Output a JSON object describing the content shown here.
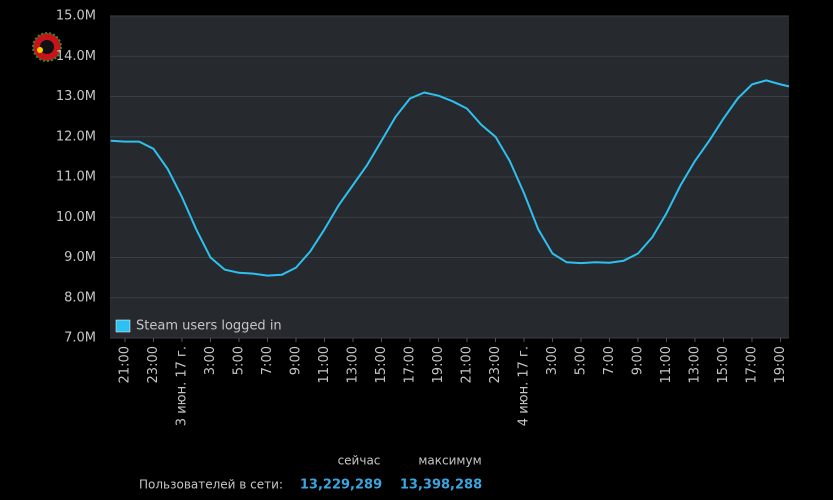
{
  "chart_data": {
    "type": "line",
    "legend": "top-left-inside",
    "grid": true,
    "x": [
      -4,
      -3,
      -2,
      -1,
      0,
      1,
      2,
      3,
      4,
      5,
      6,
      7,
      8,
      9,
      10,
      11,
      12,
      13,
      14,
      15,
      16,
      17,
      18,
      19,
      20,
      21,
      22,
      23,
      24,
      25,
      26,
      27,
      28,
      29,
      30,
      31,
      32,
      33,
      34,
      35,
      36,
      37,
      38,
      39,
      40,
      41,
      42,
      43,
      43.6
    ],
    "series": [
      {
        "name": "Steam users logged in",
        "color": "#2ec0f0",
        "values": [
          11.9,
          11.88,
          11.88,
          11.7,
          11.2,
          10.5,
          9.7,
          9.0,
          8.7,
          8.62,
          8.6,
          8.55,
          8.57,
          8.75,
          9.15,
          9.7,
          10.3,
          10.8,
          11.3,
          11.9,
          12.5,
          12.95,
          13.1,
          13.02,
          12.88,
          12.7,
          12.3,
          12.0,
          11.4,
          10.6,
          9.7,
          9.1,
          8.88,
          8.86,
          8.88,
          8.87,
          8.92,
          9.1,
          9.5,
          10.1,
          10.8,
          11.4,
          11.9,
          12.45,
          12.95,
          13.3,
          13.4,
          13.3,
          13.25
        ]
      }
    ],
    "xlim": [
      -4.05,
      43.6
    ],
    "xticks": [
      {
        "value": -3,
        "label": "21:00"
      },
      {
        "value": -1,
        "label": "23:00"
      },
      {
        "value": 1,
        "label": "3 июн. 17 г."
      },
      {
        "value": 3,
        "label": "3:00"
      },
      {
        "value": 5,
        "label": "5:00"
      },
      {
        "value": 7,
        "label": "7:00"
      },
      {
        "value": 9,
        "label": "9:00"
      },
      {
        "value": 11,
        "label": "11:00"
      },
      {
        "value": 13,
        "label": "13:00"
      },
      {
        "value": 15,
        "label": "15:00"
      },
      {
        "value": 17,
        "label": "17:00"
      },
      {
        "value": 19,
        "label": "19:00"
      },
      {
        "value": 21,
        "label": "21:00"
      },
      {
        "value": 23,
        "label": "23:00"
      },
      {
        "value": 25,
        "label": "4 июн. 17 г."
      },
      {
        "value": 27,
        "label": "3:00"
      },
      {
        "value": 29,
        "label": "5:00"
      },
      {
        "value": 31,
        "label": "7:00"
      },
      {
        "value": 33,
        "label": "9:00"
      },
      {
        "value": 35,
        "label": "11:00"
      },
      {
        "value": 37,
        "label": "13:00"
      },
      {
        "value": 39,
        "label": "15:00"
      },
      {
        "value": 41,
        "label": "17:00"
      },
      {
        "value": 43,
        "label": "19:00"
      }
    ],
    "ylim": [
      7,
      15
    ],
    "yticks": [
      {
        "value": 7,
        "label": "7.0M"
      },
      {
        "value": 8,
        "label": "8.0M"
      },
      {
        "value": 9,
        "label": "9.0M"
      },
      {
        "value": 10,
        "label": "10.0M"
      },
      {
        "value": 11,
        "label": "11.0M"
      },
      {
        "value": 12,
        "label": "12.0M"
      },
      {
        "value": 13,
        "label": "13.0M"
      },
      {
        "value": 14,
        "label": "14.0M"
      },
      {
        "value": 15,
        "label": "15.0M"
      }
    ]
  },
  "stats": {
    "label": "Пользователей в сети:",
    "current_label": "сейчас",
    "current": "13,229,289",
    "max_label": "максимум",
    "max": "13,398,288"
  }
}
